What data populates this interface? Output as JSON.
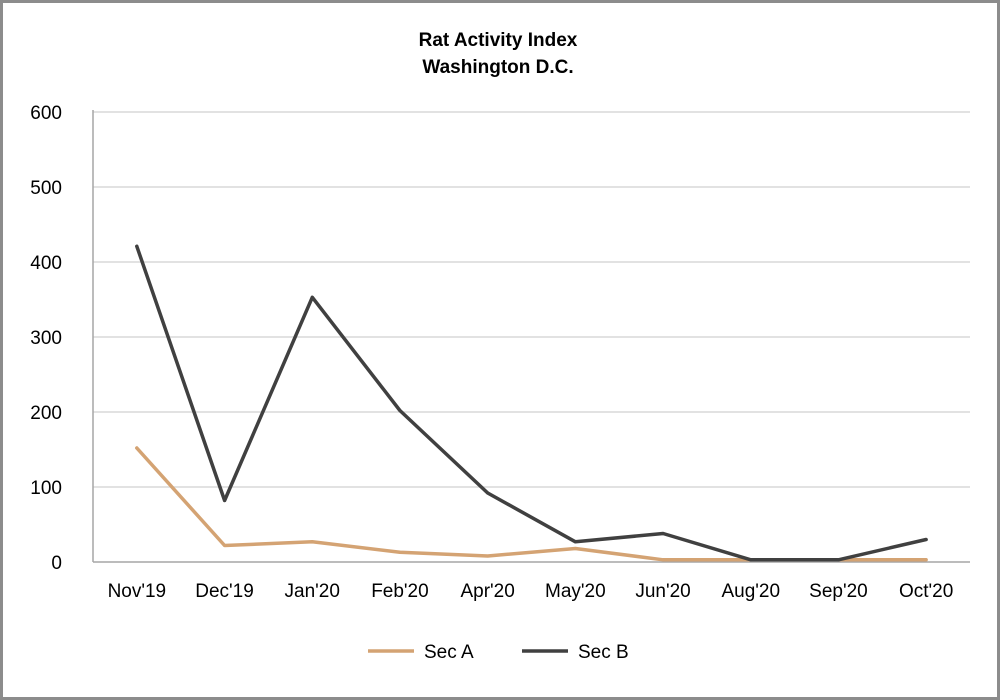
{
  "chart_data": {
    "type": "line",
    "title": "Rat Activity Index",
    "subtitle": "Washington D.C.",
    "xlabel": "",
    "ylabel": "",
    "categories": [
      "Nov'19",
      "Dec'19",
      "Jan'20",
      "Feb'20",
      "Apr'20",
      "May'20",
      "Jun'20",
      "Aug'20",
      "Sep'20",
      "Oct'20"
    ],
    "ylim": [
      0,
      600
    ],
    "yticks": [
      0,
      100,
      200,
      300,
      400,
      500,
      600
    ],
    "grid": true,
    "legend_position": "bottom-center",
    "series": [
      {
        "name": "Sec A",
        "color": "#d4a373",
        "values": [
          152,
          22,
          27,
          13,
          8,
          18,
          3,
          3,
          3,
          3
        ]
      },
      {
        "name": "Sec B",
        "color": "#404040",
        "values": [
          421,
          82,
          353,
          202,
          92,
          27,
          38,
          3,
          3,
          30
        ]
      }
    ]
  }
}
